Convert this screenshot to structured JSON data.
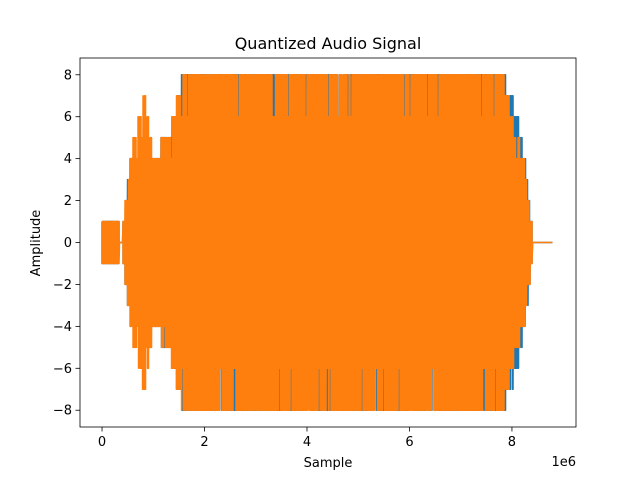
{
  "chart_data": {
    "type": "line",
    "title": "Quantized Audio Signal",
    "xlabel": "Sample",
    "ylabel": "Amplitude",
    "x_offset_text": "1e6",
    "xlim": [
      -430000,
      9250000
    ],
    "ylim": [
      -8.8,
      8.8
    ],
    "x_ticks": [
      0,
      2000000,
      4000000,
      6000000,
      8000000
    ],
    "x_tick_labels": [
      "0",
      "2",
      "4",
      "6",
      "8"
    ],
    "y_ticks": [
      -8,
      -6,
      -4,
      -2,
      0,
      2,
      4,
      6,
      8
    ],
    "y_tick_labels": [
      "−8",
      "−6",
      "−4",
      "−2",
      "0",
      "2",
      "4",
      "6",
      "8"
    ],
    "grid": false,
    "series": [
      {
        "color": "#1f77b4",
        "envelope": [
          {
            "x": 0,
            "min": -1,
            "max": 1
          },
          {
            "x": 300000,
            "min": -1,
            "max": 1
          },
          {
            "x": 380000,
            "min": 0,
            "max": 0
          },
          {
            "x": 560000,
            "min": -4,
            "max": 4
          },
          {
            "x": 700000,
            "min": -3,
            "max": 3
          },
          {
            "x": 1000000,
            "min": -4,
            "max": 4
          },
          {
            "x": 1300000,
            "min": -5,
            "max": 5
          },
          {
            "x": 1600000,
            "min": -8,
            "max": 8
          },
          {
            "x": 7800000,
            "min": -8,
            "max": 8
          },
          {
            "x": 8100000,
            "min": -6,
            "max": 6
          },
          {
            "x": 8300000,
            "min": -3,
            "max": 3
          },
          {
            "x": 8380000,
            "min": -1,
            "max": 1
          },
          {
            "x": 8420000,
            "min": 0,
            "max": 0
          },
          {
            "x": 8800000,
            "min": 0,
            "max": 0
          }
        ]
      },
      {
        "color": "#ff7f0e",
        "envelope": [
          {
            "x": 0,
            "min": -1,
            "max": 1
          },
          {
            "x": 300000,
            "min": -1,
            "max": 1
          },
          {
            "x": 380000,
            "min": 0,
            "max": 0
          },
          {
            "x": 560000,
            "min": -4,
            "max": 4
          },
          {
            "x": 830000,
            "min": -7,
            "max": 7
          },
          {
            "x": 1000000,
            "min": -4,
            "max": 4
          },
          {
            "x": 1300000,
            "min": -5,
            "max": 5
          },
          {
            "x": 1600000,
            "min": -8,
            "max": 8
          },
          {
            "x": 7800000,
            "min": -8,
            "max": 8
          },
          {
            "x": 8100000,
            "min": -5,
            "max": 5
          },
          {
            "x": 8300000,
            "min": -3,
            "max": 3
          },
          {
            "x": 8380000,
            "min": -1,
            "max": 1
          },
          {
            "x": 8420000,
            "min": 0,
            "max": 0
          },
          {
            "x": 8800000,
            "min": 0,
            "max": 0
          }
        ]
      }
    ]
  }
}
